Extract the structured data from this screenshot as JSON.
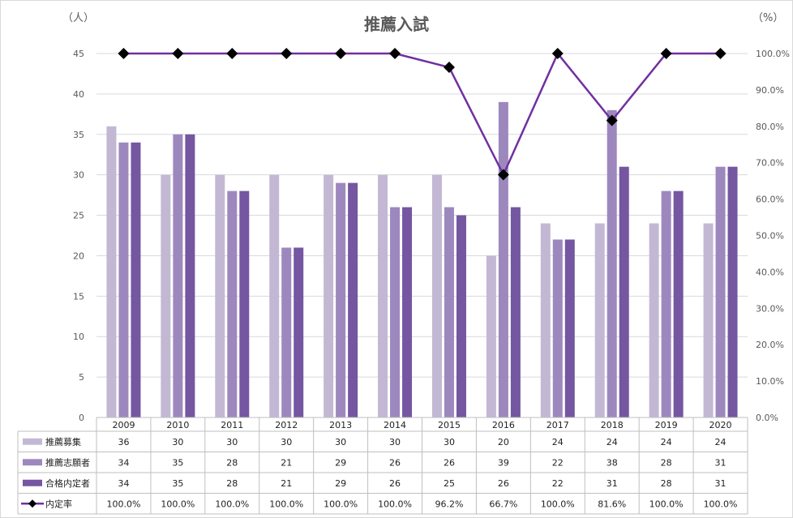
{
  "chart_data": {
    "type": "bar",
    "title": "推薦入試",
    "left_unit": "（人）",
    "right_unit": "（%）",
    "categories": [
      "2009",
      "2010",
      "2011",
      "2012",
      "2013",
      "2014",
      "2015",
      "2016",
      "2017",
      "2018",
      "2019",
      "2020"
    ],
    "ylim": [
      0,
      45
    ],
    "y_ticks": [
      "0",
      "5",
      "10",
      "15",
      "20",
      "25",
      "30",
      "35",
      "40",
      "45"
    ],
    "y2lim": [
      0,
      100
    ],
    "y2_ticks": [
      "0.0%",
      "10.0%",
      "20.0%",
      "30.0%",
      "40.0%",
      "50.0%",
      "60.0%",
      "70.0%",
      "80.0%",
      "90.0%",
      "100.0%"
    ],
    "grid": true,
    "legend": "data-table",
    "series": [
      {
        "name": "推薦募集",
        "type": "bar",
        "axis": "left",
        "color": "#c3b8d4",
        "values": [
          36,
          30,
          30,
          30,
          30,
          30,
          30,
          20,
          24,
          24,
          24,
          24
        ],
        "labels": [
          "36",
          "30",
          "30",
          "30",
          "30",
          "30",
          "30",
          "20",
          "24",
          "24",
          "24",
          "24"
        ]
      },
      {
        "name": "推薦志願者",
        "type": "bar",
        "axis": "left",
        "color": "#9d88bd",
        "values": [
          34,
          35,
          28,
          21,
          29,
          26,
          26,
          39,
          22,
          38,
          28,
          31
        ],
        "labels": [
          "34",
          "35",
          "28",
          "21",
          "29",
          "26",
          "26",
          "39",
          "22",
          "38",
          "28",
          "31"
        ]
      },
      {
        "name": "合格内定者",
        "type": "bar",
        "axis": "left",
        "color": "#7556a1",
        "values": [
          34,
          35,
          28,
          21,
          29,
          26,
          25,
          26,
          22,
          31,
          28,
          31
        ],
        "labels": [
          "34",
          "35",
          "28",
          "21",
          "29",
          "26",
          "25",
          "26",
          "22",
          "31",
          "28",
          "31"
        ]
      },
      {
        "name": "内定率",
        "type": "line",
        "axis": "right",
        "color": "#7030a0",
        "marker_color": "#000000",
        "values": [
          100.0,
          100.0,
          100.0,
          100.0,
          100.0,
          100.0,
          96.2,
          66.7,
          100.0,
          81.6,
          100.0,
          100.0
        ],
        "labels": [
          "100.0%",
          "100.0%",
          "100.0%",
          "100.0%",
          "100.0%",
          "100.0%",
          "96.2%",
          "66.7%",
          "100.0%",
          "81.6%",
          "100.0%",
          "100.0%"
        ]
      }
    ]
  }
}
